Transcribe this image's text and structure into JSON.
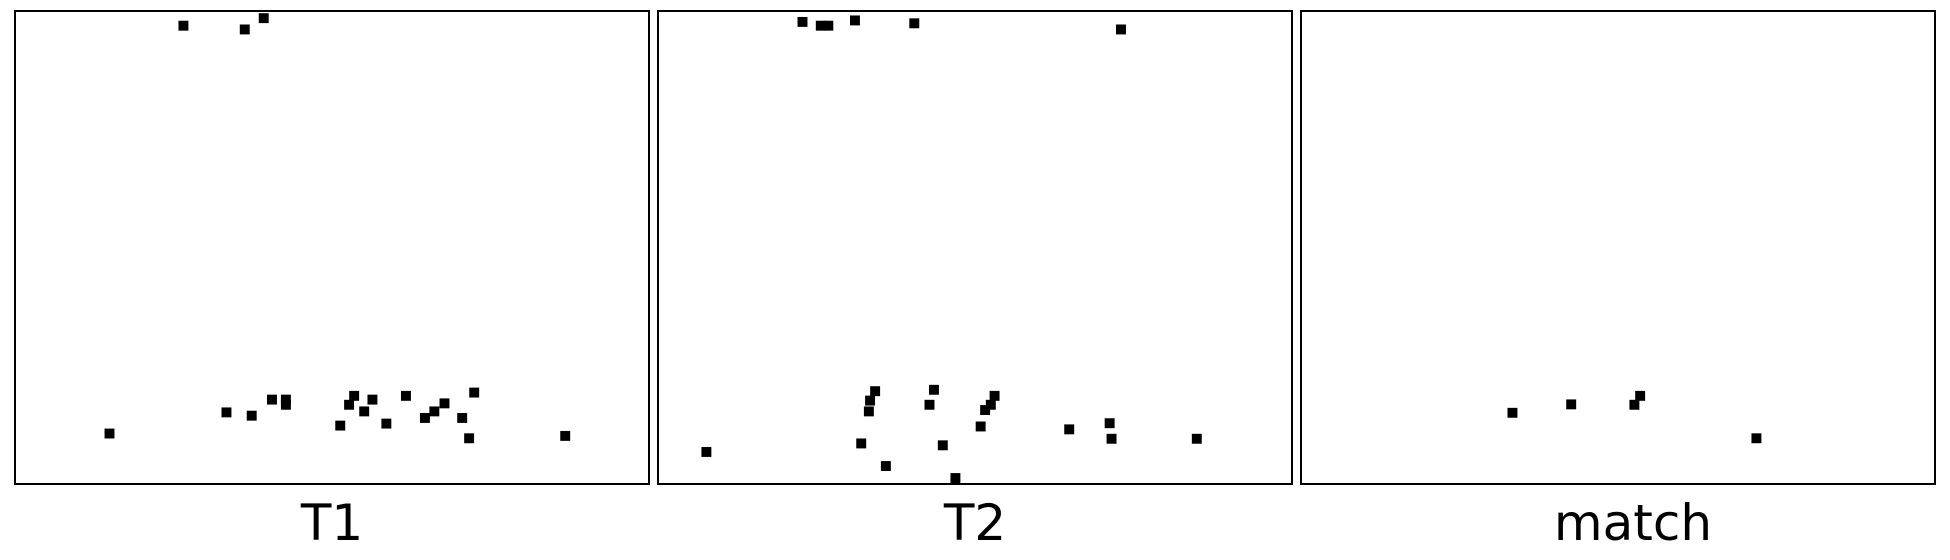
{
  "panels": [
    {
      "id": "t1",
      "label": "T1",
      "points": [
        [
          0.265,
          0.029
        ],
        [
          0.362,
          0.037
        ],
        [
          0.392,
          0.013
        ],
        [
          0.148,
          0.895
        ],
        [
          0.333,
          0.85
        ],
        [
          0.373,
          0.857
        ],
        [
          0.405,
          0.823
        ],
        [
          0.427,
          0.823
        ],
        [
          0.427,
          0.834
        ],
        [
          0.513,
          0.878
        ],
        [
          0.527,
          0.834
        ],
        [
          0.535,
          0.815
        ],
        [
          0.551,
          0.848
        ],
        [
          0.564,
          0.823
        ],
        [
          0.586,
          0.874
        ],
        [
          0.617,
          0.815
        ],
        [
          0.647,
          0.862
        ],
        [
          0.662,
          0.848
        ],
        [
          0.678,
          0.831
        ],
        [
          0.706,
          0.862
        ],
        [
          0.717,
          0.905
        ],
        [
          0.725,
          0.808
        ],
        [
          0.869,
          0.9
        ]
      ]
    },
    {
      "id": "t2",
      "label": "T2",
      "points": [
        [
          0.227,
          0.021
        ],
        [
          0.256,
          0.029
        ],
        [
          0.268,
          0.029
        ],
        [
          0.31,
          0.018
        ],
        [
          0.404,
          0.024
        ],
        [
          0.731,
          0.037
        ],
        [
          0.075,
          0.934
        ],
        [
          0.32,
          0.916
        ],
        [
          0.332,
          0.848
        ],
        [
          0.334,
          0.825
        ],
        [
          0.342,
          0.805
        ],
        [
          0.359,
          0.964
        ],
        [
          0.428,
          0.834
        ],
        [
          0.435,
          0.802
        ],
        [
          0.449,
          0.92
        ],
        [
          0.469,
          0.99
        ],
        [
          0.509,
          0.88
        ],
        [
          0.516,
          0.845
        ],
        [
          0.525,
          0.834
        ],
        [
          0.531,
          0.815
        ],
        [
          0.649,
          0.886
        ],
        [
          0.713,
          0.873
        ],
        [
          0.716,
          0.906
        ],
        [
          0.851,
          0.906
        ]
      ]
    },
    {
      "id": "match",
      "label": "match",
      "points": [
        [
          0.333,
          0.851
        ],
        [
          0.426,
          0.833
        ],
        [
          0.526,
          0.834
        ],
        [
          0.535,
          0.815
        ],
        [
          0.719,
          0.905
        ]
      ]
    }
  ],
  "marker": {
    "shape": "square",
    "color": "#000000"
  }
}
